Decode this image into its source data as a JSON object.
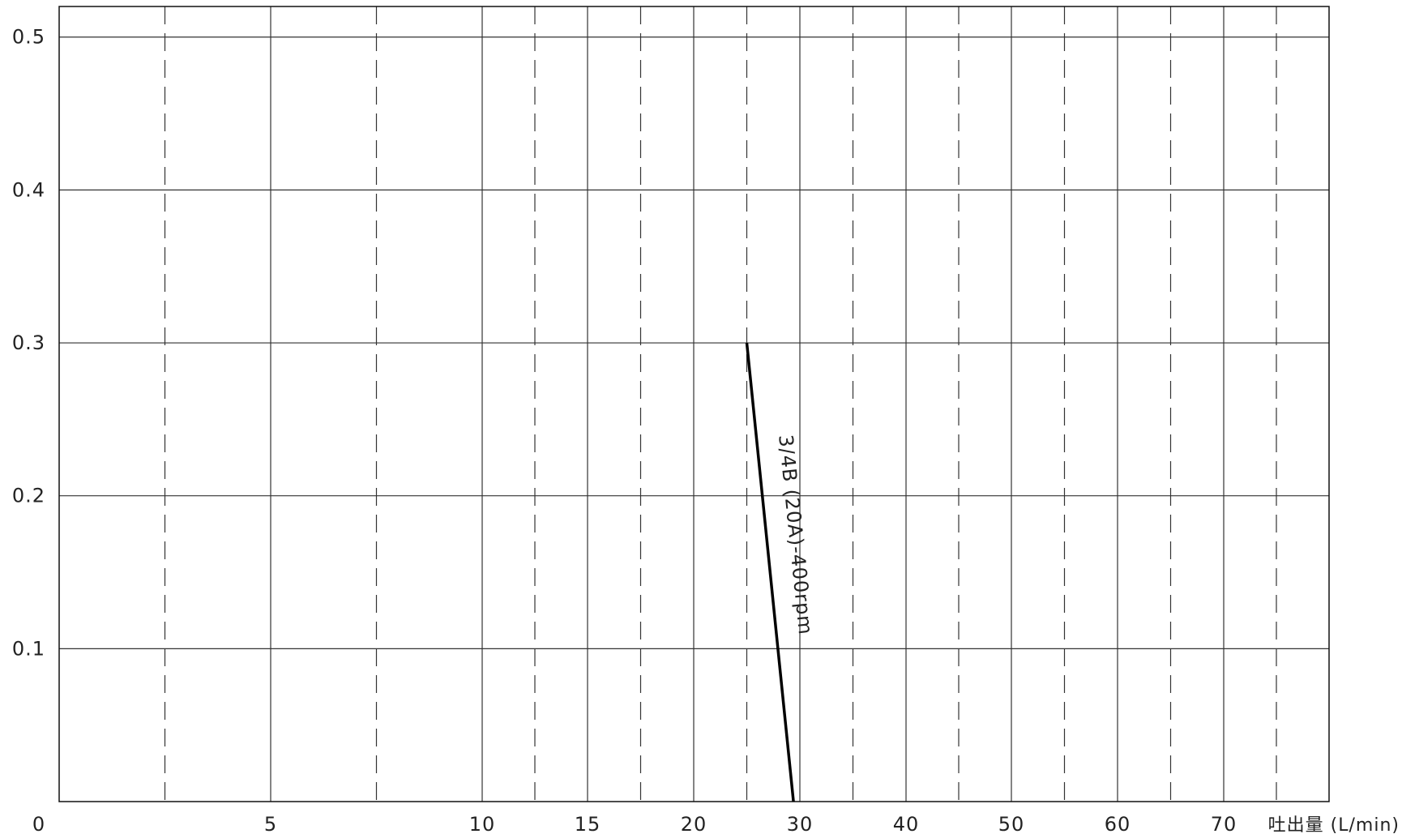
{
  "chart_data": {
    "type": "line",
    "title": "",
    "xlabel": "吐出量 (L/min)",
    "ylabel": "",
    "x_scale": "piecewise-linear",
    "x_ticks": [
      {
        "value": 0,
        "label": "0"
      },
      {
        "value": 5,
        "label": "5"
      },
      {
        "value": 10,
        "label": "10"
      },
      {
        "value": 15,
        "label": "15"
      },
      {
        "value": 20,
        "label": "20"
      },
      {
        "value": 30,
        "label": "30"
      },
      {
        "value": 40,
        "label": "40"
      },
      {
        "value": 50,
        "label": "50"
      },
      {
        "value": 60,
        "label": "60"
      },
      {
        "value": 70,
        "label": "70"
      }
    ],
    "y_ticks": [
      {
        "value": 0.1,
        "label": "0.1"
      },
      {
        "value": 0.2,
        "label": "0.2"
      },
      {
        "value": 0.3,
        "label": "0.3"
      },
      {
        "value": 0.4,
        "label": "0.4"
      },
      {
        "value": 0.5,
        "label": "0.5"
      }
    ],
    "ylim": [
      0,
      0.52
    ],
    "grid": true,
    "series": [
      {
        "name": "3/4B (20A)-400rpm",
        "x": [
          25,
          29.4
        ],
        "y": [
          0.3,
          0
        ]
      }
    ]
  }
}
